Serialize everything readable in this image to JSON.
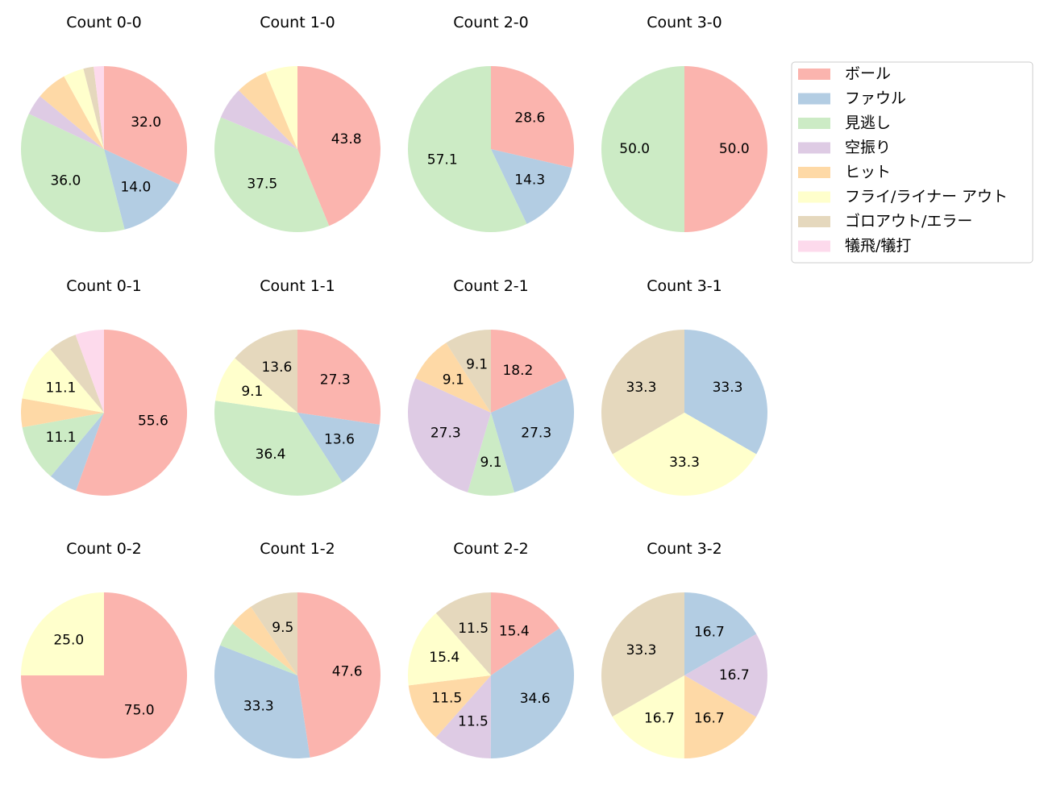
{
  "chart_data": {
    "type": "pie",
    "start_angle_deg": 90,
    "direction": "clockwise",
    "legend_placement": "top-right",
    "categories": [
      "ボール",
      "ファウル",
      "見逃し",
      "空振り",
      "ヒット",
      "フライ/ライナー アウト",
      "ゴロアウト/エラー",
      "犠飛/犠打"
    ],
    "colors": [
      "#fbb4ae",
      "#b3cde3",
      "#ccebc5",
      "#decbe4",
      "#fed9a6",
      "#ffffcc",
      "#e5d8bd",
      "#fddaec"
    ],
    "pies": [
      {
        "title": "Count 0-0",
        "values": [
          32.0,
          14.0,
          36.0,
          4.0,
          6.0,
          4.0,
          2.0,
          2.0
        ]
      },
      {
        "title": "Count 1-0",
        "values": [
          43.8,
          0,
          37.5,
          6.25,
          6.25,
          6.25,
          0,
          0
        ]
      },
      {
        "title": "Count 2-0",
        "values": [
          28.6,
          14.3,
          57.1,
          0,
          0,
          0,
          0,
          0
        ]
      },
      {
        "title": "Count 3-0",
        "values": [
          50.0,
          0,
          50.0,
          0,
          0,
          0,
          0,
          0
        ]
      },
      {
        "title": "Count 0-1",
        "values": [
          55.6,
          5.6,
          11.1,
          0,
          5.6,
          11.1,
          5.6,
          5.6
        ]
      },
      {
        "title": "Count 1-1",
        "values": [
          27.3,
          13.6,
          36.4,
          0,
          0,
          9.1,
          13.6,
          0
        ]
      },
      {
        "title": "Count 2-1",
        "values": [
          18.2,
          27.3,
          9.1,
          27.3,
          9.1,
          0,
          9.1,
          0
        ]
      },
      {
        "title": "Count 3-1",
        "values": [
          0,
          33.3,
          0,
          0,
          0,
          33.3,
          33.3,
          0
        ]
      },
      {
        "title": "Count 0-2",
        "values": [
          75.0,
          0,
          0,
          0,
          0,
          25.0,
          0,
          0
        ]
      },
      {
        "title": "Count 1-2",
        "values": [
          47.6,
          33.3,
          4.8,
          0,
          4.8,
          0,
          9.5,
          0
        ]
      },
      {
        "title": "Count 2-2",
        "values": [
          15.4,
          34.6,
          0,
          11.5,
          11.5,
          15.4,
          11.5,
          0
        ]
      },
      {
        "title": "Count 3-2",
        "values": [
          0,
          16.7,
          0,
          16.7,
          16.7,
          16.7,
          33.3,
          0
        ]
      }
    ]
  }
}
